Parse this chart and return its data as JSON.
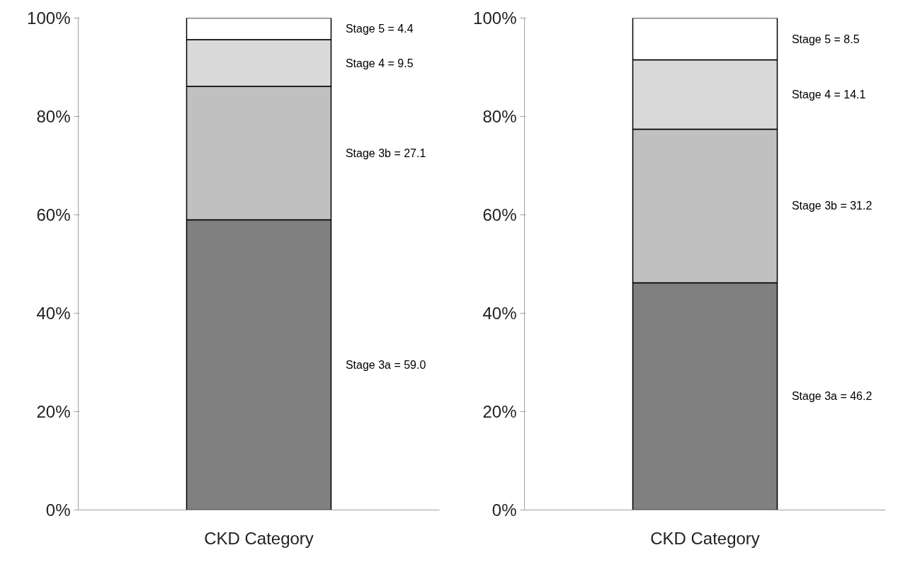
{
  "chart_data": [
    {
      "type": "bar",
      "stacked": true,
      "categories": [
        "CKD Category"
      ],
      "ylim": [
        0,
        100
      ],
      "yticks": [
        {
          "value": 0,
          "label": "0%"
        },
        {
          "value": 20,
          "label": "20%"
        },
        {
          "value": 40,
          "label": "40%"
        },
        {
          "value": 60,
          "label": "60%"
        },
        {
          "value": 80,
          "label": "80%"
        },
        {
          "value": 100,
          "label": "100%"
        }
      ],
      "grid": false,
      "series": [
        {
          "color": "#808080",
          "values": [
            59.0
          ]
        },
        {
          "color": "#c0c0c0",
          "values": [
            27.1
          ]
        },
        {
          "color": "#d9d9d9",
          "values": [
            9.5
          ]
        },
        {
          "color": "#ffffff",
          "values": [
            4.4
          ]
        }
      ],
      "annotations": [
        "Stage 3a = 59.0",
        "Stage 3b = 27.1",
        "Stage 4 = 9.5",
        "Stage 5 = 4.4"
      ]
    },
    {
      "type": "bar",
      "stacked": true,
      "categories": [
        "CKD Category"
      ],
      "ylim": [
        0,
        100
      ],
      "yticks": [
        {
          "value": 0,
          "label": "0%"
        },
        {
          "value": 20,
          "label": "20%"
        },
        {
          "value": 40,
          "label": "40%"
        },
        {
          "value": 60,
          "label": "60%"
        },
        {
          "value": 80,
          "label": "80%"
        },
        {
          "value": 100,
          "label": "100%"
        }
      ],
      "grid": false,
      "series": [
        {
          "color": "#808080",
          "values": [
            46.2
          ]
        },
        {
          "color": "#c0c0c0",
          "values": [
            31.2
          ]
        },
        {
          "color": "#d9d9d9",
          "values": [
            14.1
          ]
        },
        {
          "color": "#ffffff",
          "values": [
            8.5
          ]
        }
      ],
      "annotations": [
        "Stage 3a = 46.2",
        "Stage 3b = 31.2",
        "Stage 4 = 14.1",
        "Stage 5 = 8.5"
      ]
    }
  ]
}
